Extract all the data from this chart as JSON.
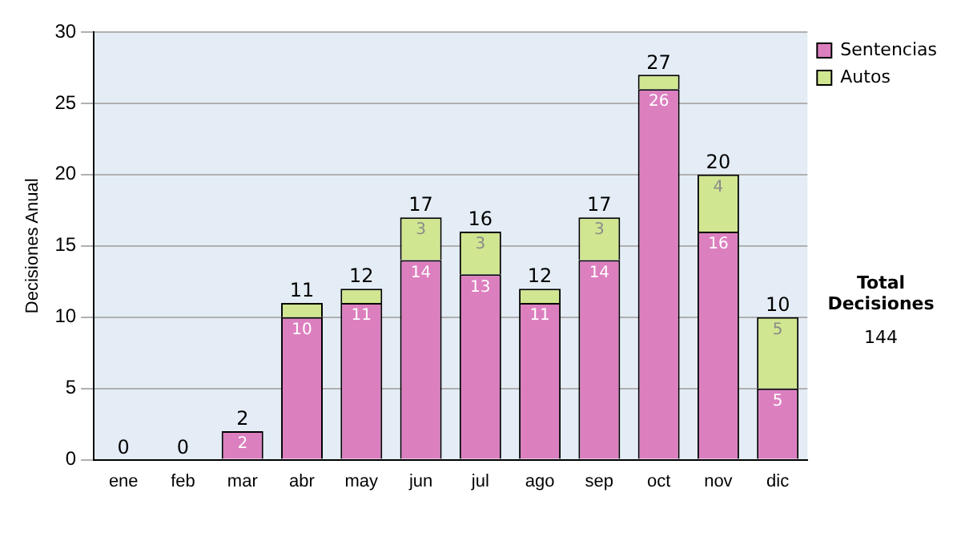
{
  "chart_data": {
    "type": "bar",
    "stacked": true,
    "ylabel": "Decisiones Anual",
    "categories": [
      "ene",
      "feb",
      "mar",
      "abr",
      "may",
      "jun",
      "jul",
      "ago",
      "sep",
      "oct",
      "nov",
      "dic"
    ],
    "series": [
      {
        "name": "Sentencias",
        "color": "#dc7fbf",
        "values": [
          0,
          0,
          2,
          10,
          11,
          14,
          13,
          11,
          14,
          26,
          16,
          5
        ],
        "value_labels": [
          null,
          null,
          "2",
          "10",
          "11",
          "14",
          "13",
          "11",
          "14",
          "26",
          "16",
          "5"
        ]
      },
      {
        "name": "Autos",
        "color": "#d0e690",
        "values": [
          0,
          0,
          0,
          1,
          1,
          3,
          3,
          1,
          3,
          1,
          4,
          5
        ],
        "value_labels": [
          null,
          null,
          null,
          null,
          null,
          "3",
          "3",
          null,
          "3",
          null,
          "4",
          "5"
        ]
      }
    ],
    "totals": [
      "0",
      "0",
      "2",
      "11",
      "12",
      "17",
      "16",
      "12",
      "17",
      "27",
      "20",
      "10"
    ],
    "ylim": [
      0,
      30
    ],
    "yticks": [
      0,
      5,
      10,
      15,
      20,
      25,
      30
    ],
    "grid": "y",
    "legend": "right",
    "annotations": [
      "Total Decisiones",
      "144"
    ]
  }
}
